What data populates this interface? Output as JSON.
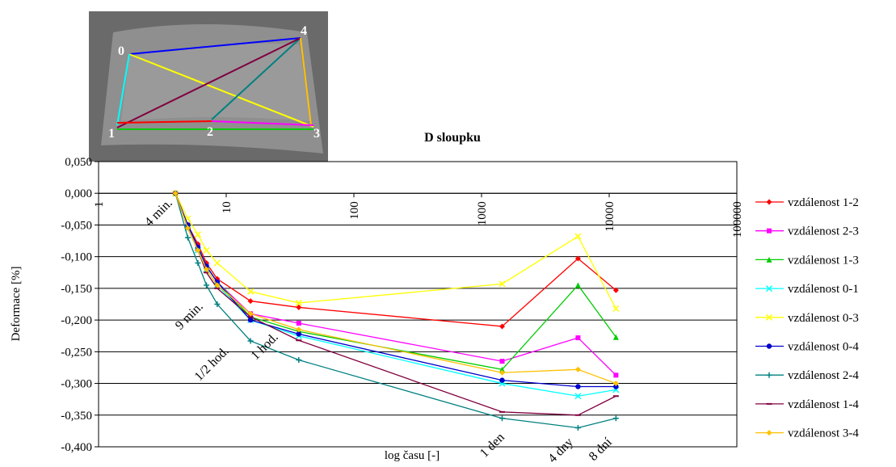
{
  "chart_data": {
    "type": "line",
    "title": "D sloupku",
    "x_label": "log času [-]",
    "y_label": "Deformace [%]",
    "x_log": true,
    "grid": true,
    "legend": "right",
    "xlim": [
      1,
      100000
    ],
    "xticks": [
      1,
      10,
      100,
      1000,
      10000,
      100000
    ],
    "ylim": [
      -0.4,
      0.05
    ],
    "yticks": [
      {
        "value": 0.05,
        "label": "0,050"
      },
      {
        "value": 0,
        "label": "0,000"
      },
      {
        "value": -0.05,
        "label": "-0,050"
      },
      {
        "value": -0.1,
        "label": "-0,100"
      },
      {
        "value": -0.15,
        "label": "-0,150"
      },
      {
        "value": -0.2,
        "label": "-0,200"
      },
      {
        "value": -0.25,
        "label": "-0,250"
      },
      {
        "value": -0.3,
        "label": "-0,300"
      },
      {
        "value": -0.35,
        "label": "-0,350"
      },
      {
        "value": -0.4,
        "label": "-0,400"
      }
    ],
    "x": [
      4,
      5,
      6,
      7,
      8.5,
      15.5,
      37,
      1450,
      5700,
      11300
    ],
    "series": [
      {
        "name": "vzdálenost 1-2",
        "color": "#ff0000",
        "marker": "diamond",
        "values": [
          0,
          -0.05,
          -0.08,
          -0.11,
          -0.135,
          -0.17,
          -0.18,
          -0.21,
          -0.103,
          -0.153
        ]
      },
      {
        "name": "vzdálenost 2-3",
        "color": "#ff00ff",
        "marker": "square",
        "values": [
          0,
          -0.05,
          -0.085,
          -0.115,
          -0.14,
          -0.19,
          -0.205,
          -0.265,
          -0.228,
          -0.287
        ]
      },
      {
        "name": "vzdálenost 1-3",
        "color": "#00cc00",
        "marker": "triangle",
        "values": [
          0,
          -0.05,
          -0.085,
          -0.115,
          -0.14,
          -0.195,
          -0.218,
          -0.278,
          -0.145,
          -0.227
        ]
      },
      {
        "name": "vzdálenost 0-1",
        "color": "#00ffff",
        "marker": "x",
        "values": [
          0,
          -0.055,
          -0.09,
          -0.12,
          -0.145,
          -0.2,
          -0.225,
          -0.3,
          -0.32,
          -0.31
        ]
      },
      {
        "name": "vzdálenost 0-3",
        "color": "#ffff00",
        "marker": "x",
        "values": [
          0,
          -0.04,
          -0.065,
          -0.09,
          -0.11,
          -0.155,
          -0.173,
          -0.143,
          -0.068,
          -0.182
        ]
      },
      {
        "name": "vzdálenost 0-4",
        "color": "#0000cc",
        "marker": "circle",
        "values": [
          0,
          -0.05,
          -0.085,
          -0.115,
          -0.14,
          -0.2,
          -0.222,
          -0.295,
          -0.305,
          -0.305
        ]
      },
      {
        "name": "vzdálenost 2-4",
        "color": "#008080",
        "marker": "plus",
        "values": [
          0,
          -0.07,
          -0.11,
          -0.145,
          -0.175,
          -0.233,
          -0.263,
          -0.355,
          -0.37,
          -0.355
        ]
      },
      {
        "name": "vzdálenost 1-4",
        "color": "#800040",
        "marker": "dash",
        "values": [
          0,
          -0.055,
          -0.09,
          -0.125,
          -0.15,
          -0.195,
          -0.232,
          -0.345,
          -0.35,
          -0.32
        ]
      },
      {
        "name": "vzdálenost 3-4",
        "color": "#ffc000",
        "marker": "diamond",
        "values": [
          0,
          -0.055,
          -0.09,
          -0.12,
          -0.145,
          -0.19,
          -0.215,
          -0.283,
          -0.278,
          -0.3
        ]
      }
    ],
    "annotations": [
      "4 min.",
      "9 min.",
      "1/2 hod.",
      "1 hod.",
      "1 den",
      "4 dny",
      "8 dní"
    ],
    "photo_labels": [
      "0",
      "1",
      "2",
      "3",
      "4"
    ]
  }
}
